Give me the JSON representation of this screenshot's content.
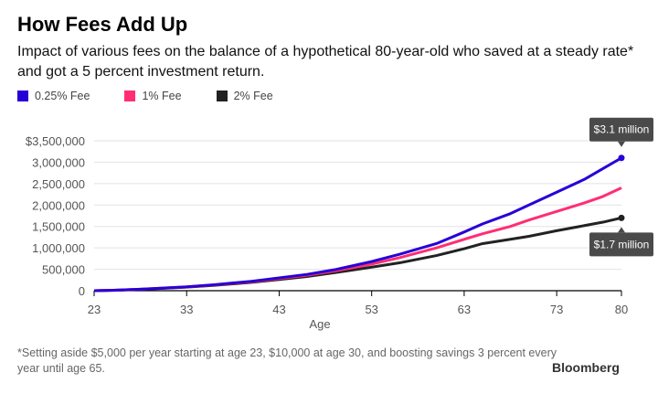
{
  "title": "How Fees Add Up",
  "subtitle": "Impact of various fees on the balance of a hypothetical 80-year-old who saved at a steady rate* and got a 5 percent investment return.",
  "footnote": "*Setting aside $5,000 per year starting at age 23, $10,000 at age 30, and boosting savings 3 percent every year until age 65.",
  "logo": "Bloomberg",
  "chart_data": {
    "type": "line",
    "xlabel": "Age",
    "ylabel": "",
    "xlim": [
      23,
      80
    ],
    "ylim": [
      0,
      3500000
    ],
    "xticks": [
      "23",
      "33",
      "43",
      "53",
      "63",
      "73",
      "80"
    ],
    "xtick_values": [
      23,
      33,
      43,
      53,
      63,
      73,
      80
    ],
    "yticks": [
      "0",
      "500,000",
      "1,000,000",
      "1,500,000",
      "2,000,000",
      "2,500,000",
      "3,000,000",
      "$3,500,000"
    ],
    "ytick_values": [
      0,
      500000,
      1000000,
      1500000,
      2000000,
      2500000,
      3000000,
      3500000
    ],
    "grid": true,
    "legend": "top-left",
    "x": [
      23,
      25,
      28,
      30,
      33,
      36,
      40,
      43,
      46,
      49,
      53,
      56,
      60,
      63,
      65,
      68,
      70,
      73,
      76,
      78,
      80
    ],
    "series": [
      {
        "name": "0.25% Fee",
        "color": "#2800d7",
        "values": [
          0,
          10000,
          35000,
          55000,
          90000,
          140000,
          220000,
          300000,
          380000,
          490000,
          680000,
          850000,
          1100000,
          1370000,
          1560000,
          1800000,
          2000000,
          2300000,
          2600000,
          2850000,
          3100000
        ]
      },
      {
        "name": "1% Fee",
        "color": "#ff2e73",
        "values": [
          0,
          10000,
          35000,
          55000,
          88000,
          135000,
          210000,
          285000,
          360000,
          460000,
          620000,
          770000,
          1000000,
          1200000,
          1330000,
          1500000,
          1650000,
          1850000,
          2050000,
          2200000,
          2400000
        ]
      },
      {
        "name": "2% Fee",
        "color": "#222222",
        "values": [
          0,
          9000,
          32000,
          50000,
          82000,
          125000,
          195000,
          260000,
          330000,
          420000,
          550000,
          650000,
          820000,
          980000,
          1100000,
          1200000,
          1270000,
          1400000,
          1520000,
          1600000,
          1700000
        ]
      }
    ],
    "annotations": [
      {
        "series": 0,
        "label": "$3.1 million",
        "position": "above"
      },
      {
        "series": 2,
        "label": "$1.7 million",
        "position": "below"
      }
    ]
  }
}
